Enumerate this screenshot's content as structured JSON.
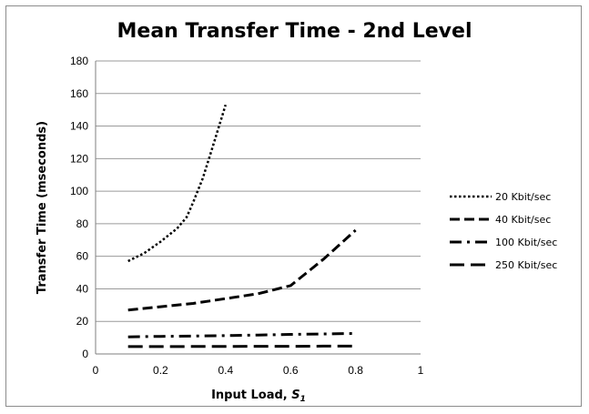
{
  "chart_data": {
    "type": "line",
    "title": "Mean Transfer Time - 2nd Level",
    "xlabel_main": "Input Load, ",
    "xlabel_var": "S",
    "xlabel_sub": "1",
    "ylabel": "Transfer Time (mseconds)",
    "xlim": [
      0,
      1
    ],
    "ylim": [
      0,
      180
    ],
    "xticks": [
      0,
      0.2,
      0.4,
      0.6,
      0.8,
      1
    ],
    "xtick_labels": [
      "0",
      "0.2",
      "0.4",
      "0.6",
      "0.8",
      "1"
    ],
    "yticks": [
      0,
      20,
      40,
      60,
      80,
      100,
      120,
      140,
      160,
      180
    ],
    "ytick_labels": [
      "0",
      "20",
      "40",
      "60",
      "80",
      "100",
      "120",
      "140",
      "160",
      "180"
    ],
    "grid": true,
    "legend_position": "right",
    "series": [
      {
        "name": "20 Kbit/sec",
        "style": "dotted",
        "x": [
          0.1,
          0.15,
          0.2,
          0.25,
          0.28,
          0.3,
          0.33,
          0.36,
          0.4
        ],
        "y": [
          57,
          62,
          69,
          77,
          84,
          93,
          108,
          127,
          153
        ]
      },
      {
        "name": "40 Kbit/sec",
        "style": "dashed",
        "x": [
          0.1,
          0.2,
          0.3,
          0.4,
          0.5,
          0.6,
          0.65,
          0.7,
          0.75,
          0.8
        ],
        "y": [
          27,
          29,
          31,
          34,
          37,
          42,
          50,
          58,
          67,
          76
        ]
      },
      {
        "name": "100 Kbit/sec",
        "style": "dashdot",
        "x": [
          0.1,
          0.2,
          0.3,
          0.4,
          0.5,
          0.6,
          0.7,
          0.8
        ],
        "y": [
          10.5,
          10.8,
          11,
          11.3,
          11.6,
          12,
          12.3,
          12.6
        ]
      },
      {
        "name": "250 Kbit/sec",
        "style": "longdash",
        "x": [
          0.1,
          0.2,
          0.3,
          0.4,
          0.5,
          0.6,
          0.7,
          0.8
        ],
        "y": [
          4.5,
          4.5,
          4.6,
          4.6,
          4.7,
          4.7,
          4.8,
          4.8
        ]
      }
    ]
  }
}
